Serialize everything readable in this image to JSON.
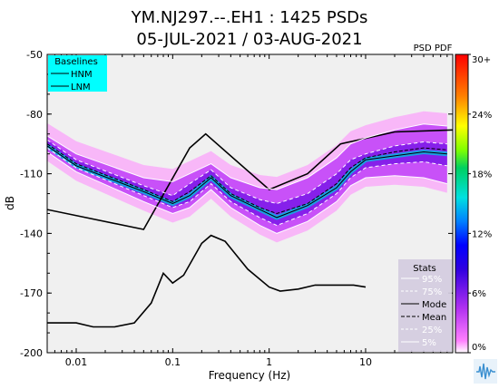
{
  "title_line1": "YM.NJ297.--.EH1 : 1425 PSDs",
  "title_line2": "05-JUL-2021 / 03-AUG-2021",
  "colorbar_title": "PSD PDF",
  "colorbar_ticks": [
    "30+",
    "24%",
    "18%",
    "12%",
    "6%",
    "0%"
  ],
  "baselines": {
    "title": "Baselines",
    "hnm": "HNM",
    "lnm": "LNM"
  },
  "stats": {
    "title": "Stats",
    "items": [
      "95%",
      "75%",
      "Mode",
      "Mean",
      "25%",
      "5%"
    ]
  },
  "colors": {
    "background": "#f0f0f0",
    "psd_core": "#a020f0",
    "baseline_box": "#00ffff",
    "stats_box": "#d4cce0"
  },
  "chart_data": {
    "type": "line",
    "xlabel": "Frequency (Hz)",
    "ylabel": "dB",
    "x_scale": "log",
    "xlim": [
      0.005,
      80
    ],
    "ylim": [
      -200,
      -50
    ],
    "x_ticks": [
      {
        "value": 0.01,
        "label": "0.01"
      },
      {
        "value": 0.1,
        "label": "0.1"
      },
      {
        "value": 1,
        "label": "1"
      },
      {
        "value": 10,
        "label": "10"
      }
    ],
    "y_ticks": [
      {
        "value": -50,
        "label": "-50"
      },
      {
        "value": -80,
        "label": "-80"
      },
      {
        "value": -110,
        "label": "-110"
      },
      {
        "value": -140,
        "label": "-140"
      },
      {
        "value": -170,
        "label": "-170"
      },
      {
        "value": -200,
        "label": "-200"
      }
    ],
    "series": [
      {
        "name": "HNM",
        "x": [
          0.005,
          0.05,
          0.15,
          0.22,
          1.0,
          2.5,
          5.5,
          20,
          80
        ],
        "y": [
          -128,
          -138,
          -97,
          -90,
          -118,
          -110,
          -95,
          -89,
          -88
        ]
      },
      {
        "name": "LNM",
        "x": [
          0.005,
          0.01,
          0.015,
          0.025,
          0.04,
          0.06,
          0.08,
          0.1,
          0.13,
          0.2,
          0.25,
          0.35,
          0.6,
          1.0,
          1.3,
          2.0,
          3.0,
          5.0,
          7.5,
          10
        ],
        "y": [
          -185,
          -185,
          -187,
          -187,
          -185,
          -175,
          -160,
          -165,
          -161,
          -145,
          -141,
          -144,
          -158,
          -167,
          -169,
          -168,
          -166,
          -166,
          -166,
          -167
        ]
      },
      {
        "name": "95%",
        "x": [
          0.005,
          0.01,
          0.05,
          0.1,
          0.15,
          0.25,
          0.4,
          0.8,
          1.2,
          2.5,
          5,
          7,
          10,
          20,
          40,
          70
        ],
        "y": [
          -91,
          -100,
          -112,
          -114,
          -110,
          -105,
          -112,
          -117,
          -118,
          -112,
          -102,
          -95,
          -92,
          -88,
          -85,
          -86
        ]
      },
      {
        "name": "75%",
        "x": [
          0.005,
          0.01,
          0.05,
          0.1,
          0.15,
          0.25,
          0.4,
          0.8,
          1.2,
          2.5,
          5,
          7,
          10,
          20,
          40,
          70
        ],
        "y": [
          -93,
          -103,
          -116,
          -121,
          -115,
          -108,
          -117,
          -123,
          -125,
          -120,
          -110,
          -103,
          -100,
          -96,
          -94,
          -95
        ]
      },
      {
        "name": "Mode",
        "x": [
          0.005,
          0.01,
          0.05,
          0.1,
          0.15,
          0.25,
          0.4,
          0.8,
          1.2,
          2.5,
          5,
          7,
          10,
          20,
          40,
          70
        ],
        "y": [
          -96,
          -106,
          -119,
          -125,
          -121,
          -112,
          -121,
          -128,
          -132,
          -126,
          -117,
          -109,
          -103,
          -101,
          -99,
          -100
        ]
      },
      {
        "name": "Mean",
        "x": [
          0.005,
          0.01,
          0.05,
          0.1,
          0.15,
          0.25,
          0.4,
          0.8,
          1.2,
          2.5,
          5,
          7,
          10,
          20,
          40,
          70
        ],
        "y": [
          -95,
          -105,
          -118,
          -124,
          -119,
          -111,
          -120,
          -127,
          -130,
          -125,
          -115,
          -107,
          -102,
          -99,
          -97,
          -98
        ]
      },
      {
        "name": "25%",
        "x": [
          0.005,
          0.01,
          0.05,
          0.1,
          0.15,
          0.25,
          0.4,
          0.8,
          1.2,
          2.5,
          5,
          7,
          10,
          20,
          40,
          70
        ],
        "y": [
          -97,
          -107,
          -121,
          -127,
          -124,
          -115,
          -124,
          -132,
          -136,
          -130,
          -120,
          -112,
          -107,
          -105,
          -104,
          -106
        ]
      },
      {
        "name": "5%",
        "x": [
          0.005,
          0.01,
          0.05,
          0.1,
          0.15,
          0.25,
          0.4,
          0.8,
          1.2,
          2.5,
          5,
          7,
          10,
          20,
          40,
          70
        ],
        "y": [
          -99,
          -109,
          -124,
          -130,
          -127,
          -118,
          -127,
          -136,
          -140,
          -134,
          -124,
          -116,
          -112,
          -111,
          -112,
          -115
        ]
      }
    ],
    "grid": false,
    "legend_baselines": "top-left",
    "legend_stats": "bottom-right",
    "colorbar": "right"
  }
}
